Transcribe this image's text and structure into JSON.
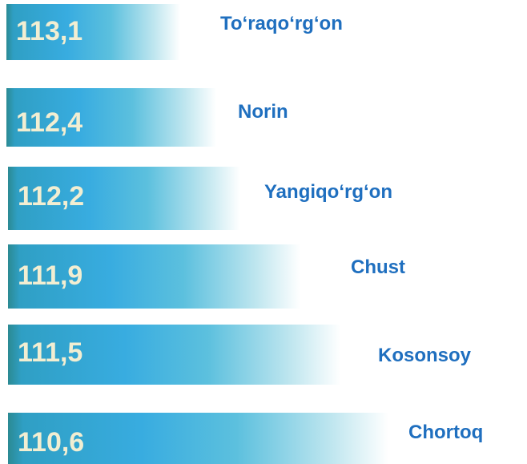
{
  "items": [
    {
      "value": "113,1",
      "name": "To‘raqo‘rg‘on"
    },
    {
      "value": "112,4",
      "name": "Norin"
    },
    {
      "value": "112,2",
      "name": "Yangiqo‘rg‘on"
    },
    {
      "value": "111,9",
      "name": "Chust"
    },
    {
      "value": "111,5",
      "name": "Kosonsoy"
    },
    {
      "value": "110,6",
      "name": "Chortoq"
    }
  ]
}
